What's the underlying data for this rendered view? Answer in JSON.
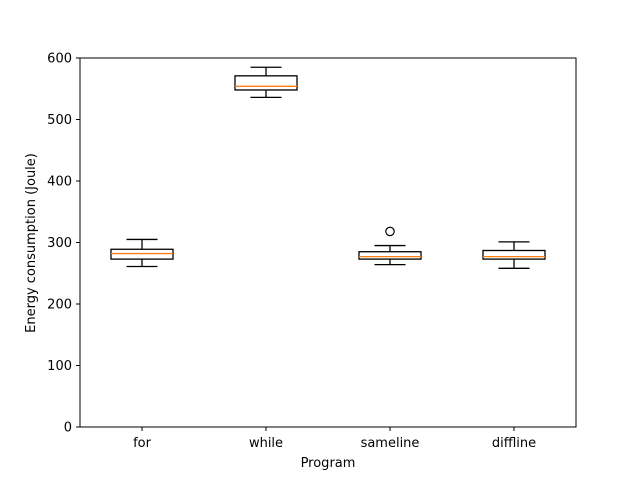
{
  "chart_data": {
    "type": "box",
    "categories": [
      "for",
      "while",
      "sameline",
      "diffline"
    ],
    "boxes": [
      {
        "name": "for",
        "whisker_low": 261,
        "q1": 273,
        "median": 282,
        "q3": 289,
        "whisker_high": 305,
        "outliers": []
      },
      {
        "name": "while",
        "whisker_low": 536,
        "q1": 548,
        "median": 554,
        "q3": 571,
        "whisker_high": 585,
        "outliers": []
      },
      {
        "name": "sameline",
        "whisker_low": 264,
        "q1": 273,
        "median": 277,
        "q3": 285,
        "whisker_high": 295,
        "outliers": [
          318
        ]
      },
      {
        "name": "diffline",
        "whisker_low": 258,
        "q1": 273,
        "median": 277,
        "q3": 287,
        "whisker_high": 301,
        "outliers": []
      }
    ],
    "xlabel": "Program",
    "ylabel": "Energy consumption (Joule)",
    "ylim": [
      0,
      600
    ],
    "yticks": [
      0,
      100,
      200,
      300,
      400,
      500,
      600
    ],
    "grid": false,
    "colors": {
      "box": "#000000",
      "median": "#ff7f0e",
      "axes": "#000000",
      "background": "#ffffff"
    }
  }
}
